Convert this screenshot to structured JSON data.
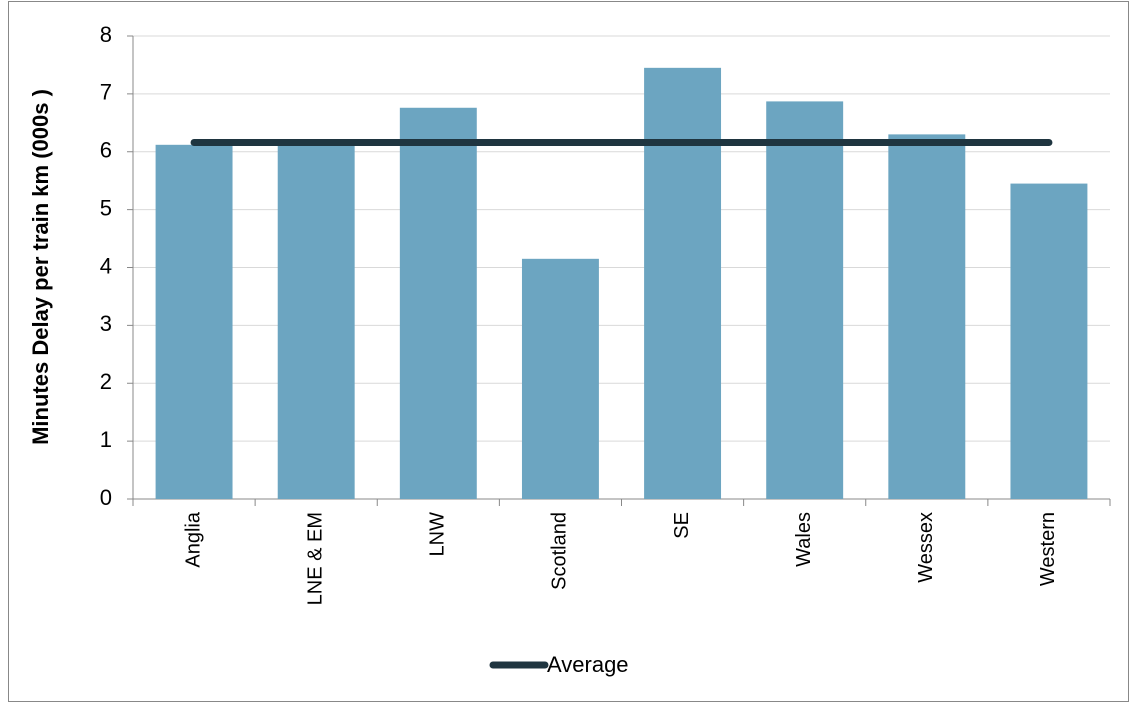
{
  "chart_data": {
    "type": "bar",
    "y_label": "Minutes Delay per train km (000s )",
    "categories": [
      "Anglia",
      "LNE & EM",
      "LNW",
      "Scotland",
      "SE",
      "Wales",
      "Wessex",
      "Western"
    ],
    "values": [
      6.12,
      6.1,
      6.76,
      4.15,
      7.45,
      6.87,
      6.3,
      5.45
    ],
    "color": "#6ca5c1",
    "line": {
      "name": "Average",
      "color": "#1f3540",
      "values": [
        6.16,
        6.16,
        6.16,
        6.16,
        6.16,
        6.16,
        6.16,
        6.16
      ]
    },
    "ylim": [
      0,
      8
    ],
    "yticks": [
      0,
      1,
      2,
      3,
      4,
      5,
      6,
      7,
      8
    ],
    "grid": true,
    "legend": "bottom"
  }
}
